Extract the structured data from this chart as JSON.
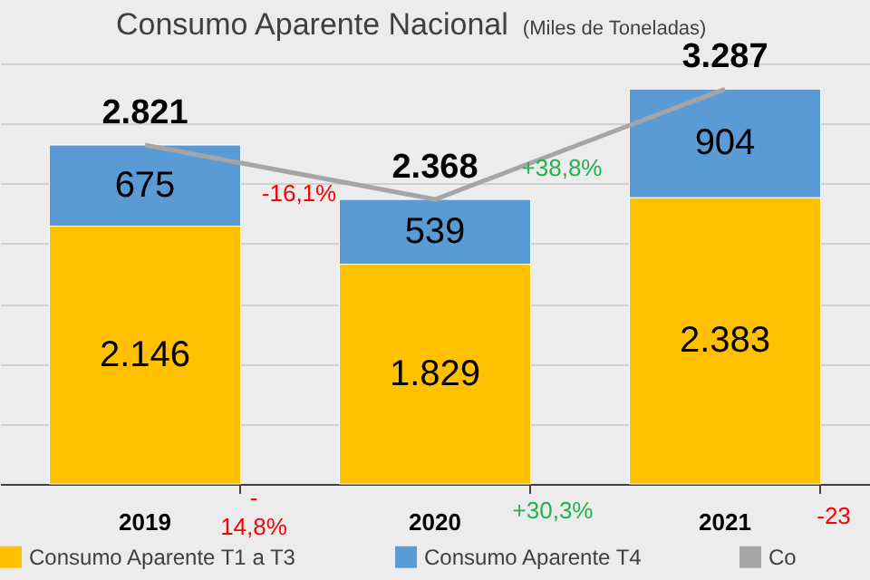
{
  "chart_data": {
    "type": "bar",
    "title": "Consumo Aparente Nacional",
    "subtitle": "(Miles de Toneladas)",
    "categories": [
      "2019",
      "2020",
      "2021"
    ],
    "stacked": true,
    "series": [
      {
        "name": "Consumo Aparente T1 a T3",
        "color": "#ffc000",
        "values": [
          2146,
          1829,
          2383
        ],
        "value_labels": [
          "2.146",
          "1.829",
          "2.383"
        ]
      },
      {
        "name": "Consumo Aparente T4",
        "color": "#5b9bd5",
        "values": [
          675,
          539,
          904
        ],
        "value_labels": [
          "675",
          "539",
          "904"
        ]
      },
      {
        "type": "line",
        "name": "Co",
        "color": "#a5a5a5",
        "values": [
          2821,
          2368,
          3287
        ]
      }
    ],
    "totals": [
      "2.821",
      "2.368",
      "3.287"
    ],
    "tick_labels": "x",
    "grid": "y",
    "legend": "bottom",
    "annotations": [
      "-16,1%",
      "+38,8%",
      "-\n14,8%",
      "+30,3%",
      "-23"
    ]
  }
}
